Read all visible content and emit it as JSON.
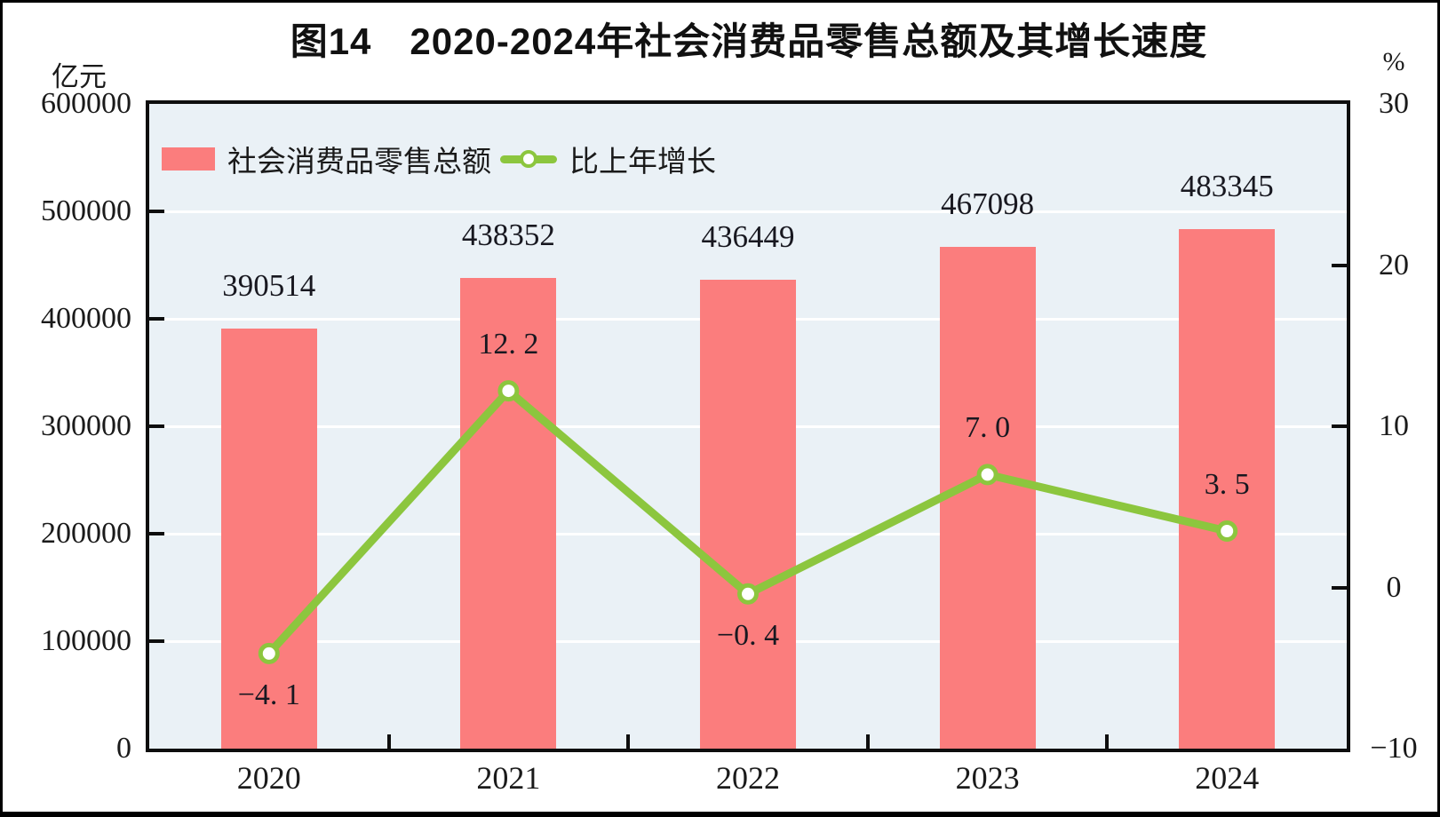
{
  "title": "图14　2020-2024年社会消费品零售总额及其增长速度",
  "y_axis_left": {
    "unit": "亿元",
    "ticks": [
      "600000",
      "500000",
      "400000",
      "300000",
      "200000",
      "100000",
      "0"
    ]
  },
  "y_axis_right": {
    "unit": "%",
    "ticks": [
      "30",
      "20",
      "10",
      "0",
      "−10"
    ]
  },
  "legend": {
    "bar_label": "社会消费品零售总额",
    "line_label": "比上年增长"
  },
  "colors": {
    "bar": "#FB7D7D",
    "line": "#8CC63E",
    "plot_background": "#EAF1F6",
    "gridline": "#FFFFFF",
    "axis": "#0E0E0E",
    "text": "#181820"
  },
  "chart_data": {
    "type": "bar+line combo",
    "title": "图14　2020-2024年社会消费品零售总额及其增长速度",
    "categories": [
      "2020",
      "2021",
      "2022",
      "2023",
      "2024"
    ],
    "series": [
      {
        "name": "社会消费品零售总额",
        "type": "bar",
        "axis": "left",
        "unit": "亿元",
        "values": [
          390514,
          438352,
          436449,
          467098,
          483345
        ],
        "labels": [
          "390514",
          "438352",
          "436449",
          "467098",
          "483345"
        ],
        "color": "#FB7D7D"
      },
      {
        "name": "比上年增长",
        "type": "line",
        "axis": "right",
        "unit": "%",
        "values": [
          -4.1,
          12.2,
          -0.4,
          7.0,
          3.5
        ],
        "labels": [
          "−4. 1",
          "12. 2",
          "−0. 4",
          "7. 0",
          "3. 5"
        ],
        "color": "#8CC63E"
      }
    ],
    "ylim_left": [
      0,
      600000
    ],
    "ylim_right": [
      -10,
      30
    ],
    "ytick_step_left": 100000,
    "ytick_step_right": 10,
    "grid": true,
    "gridline_color": "white",
    "legend_position": "top-left inside plot"
  }
}
